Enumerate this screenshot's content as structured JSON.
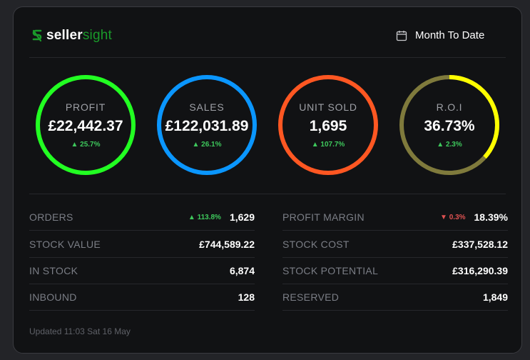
{
  "brand": {
    "name_bold": "seller",
    "name_light": "sight",
    "icon": "sellersight-logo-icon"
  },
  "period": {
    "label": "Month To Date",
    "icon": "calendar-icon"
  },
  "colors": {
    "profit": "#22ff22",
    "sales": "#0a96ff",
    "units": "#ff5722",
    "roi": "#ffff00",
    "roi_track": "#7f7a3c",
    "up": "#3ec85c",
    "down": "#e05252"
  },
  "kpis": [
    {
      "title": "PROFIT",
      "value": "£22,442.37",
      "change": "▲ 25.7%",
      "direction": "up"
    },
    {
      "title": "SALES",
      "value": "£122,031.89",
      "change": "▲ 26.1%",
      "direction": "up"
    },
    {
      "title": "UNIT SOLD",
      "value": "1,695",
      "change": "▲ 107.7%",
      "direction": "up"
    },
    {
      "title": "R.O.I",
      "value": "36.73%",
      "change": "▲ 2.3%",
      "direction": "up",
      "progress": 0.3673
    }
  ],
  "stats_left": [
    {
      "label": "ORDERS",
      "delta": "▲ 113.8%",
      "delta_direction": "up",
      "value": "1,629"
    },
    {
      "label": "STOCK VALUE",
      "value": "£744,589.22"
    },
    {
      "label": "IN STOCK",
      "value": "6,874"
    },
    {
      "label": "INBOUND",
      "value": "128"
    }
  ],
  "stats_right": [
    {
      "label": "PROFIT MARGIN",
      "delta": "▼ 0.3%",
      "delta_direction": "down",
      "value": "18.39%"
    },
    {
      "label": "STOCK COST",
      "value": "£337,528.12"
    },
    {
      "label": "STOCK POTENTIAL",
      "value": "£316,290.39"
    },
    {
      "label": "RESERVED",
      "value": "1,849"
    }
  ],
  "updated": "Updated 11:03 Sat 16 May"
}
